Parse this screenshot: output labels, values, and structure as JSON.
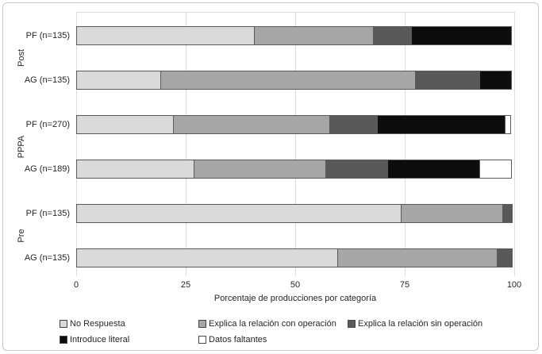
{
  "chart_data": {
    "type": "bar",
    "orientation": "horizontal-stacked",
    "title": "",
    "xlabel": "Porcentaje de producciones por categoría",
    "xlim": [
      0,
      100
    ],
    "x_ticks": [
      0,
      25,
      50,
      75,
      100
    ],
    "grid": "vertical-major-light",
    "legend_position": "bottom",
    "categories": [
      "PF (n=135)",
      "AG (n=135)",
      "PF (n=270)",
      "AG (n=189)",
      "PF (n=135)",
      "AG (n=135)"
    ],
    "groups": [
      {
        "label": "Post",
        "row_indexes": [
          0,
          1
        ]
      },
      {
        "label": "PPPA",
        "row_indexes": [
          2,
          3
        ]
      },
      {
        "label": "Pre",
        "row_indexes": [
          4,
          5
        ]
      }
    ],
    "series": [
      {
        "name": "No Respuesta",
        "color": "#d9d9d9",
        "values": [
          40.7,
          19.3,
          22.2,
          27.0,
          74.3,
          59.7
        ]
      },
      {
        "name": "Explica la relación con operación",
        "color": "#a6a6a6",
        "values": [
          27.4,
          58.5,
          35.9,
          30.2,
          23.3,
          36.6
        ]
      },
      {
        "name": "Explica la relación sin operación",
        "color": "#595959",
        "values": [
          8.9,
          14.8,
          11.1,
          14.3,
          2.4,
          3.7
        ]
      },
      {
        "name": "Introduce literal",
        "color": "#0d0d0d",
        "values": [
          23.0,
          7.4,
          29.3,
          21.2,
          0,
          0
        ]
      },
      {
        "name": "Datos faltantes",
        "color": "#ffffff",
        "values": [
          0,
          0,
          1.5,
          7.4,
          0,
          0
        ]
      }
    ],
    "colors_meta": {
      "segment_border": "#5a5a5a",
      "gridline": "#dcdcdc",
      "text": "#262626",
      "figure_border": "#c8c8c8"
    }
  }
}
